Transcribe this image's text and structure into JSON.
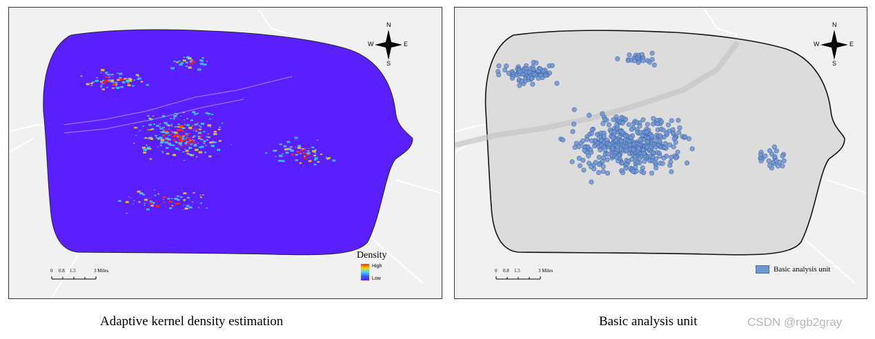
{
  "left_panel": {
    "compass": {
      "n": "N",
      "s": "S",
      "e": "E",
      "w": "W"
    },
    "scale": {
      "ticks": [
        "0",
        "0.8",
        "1.5",
        "3 Miles"
      ]
    },
    "legend": {
      "title": "Density",
      "high": "High",
      "low": "Low"
    },
    "caption": "Adaptive kernel density estimation",
    "colors": {
      "fill": "#5a1fff",
      "low": "#5a20ff",
      "mid": "#3ad8ff",
      "high": "#ff2a00"
    }
  },
  "right_panel": {
    "compass": {
      "n": "N",
      "s": "S",
      "e": "E",
      "w": "W"
    },
    "scale": {
      "ticks": [
        "0",
        "0.8",
        "1.5",
        "3 Miles"
      ]
    },
    "legend": {
      "label": "Basic analysis unit"
    },
    "caption": "Basic analysis unit",
    "colors": {
      "area_fill": "#dcdcdc",
      "point_fill": "#6f97d6",
      "point_stroke": "#3f63a0"
    }
  },
  "watermark": "CSDN @rgb2gray"
}
